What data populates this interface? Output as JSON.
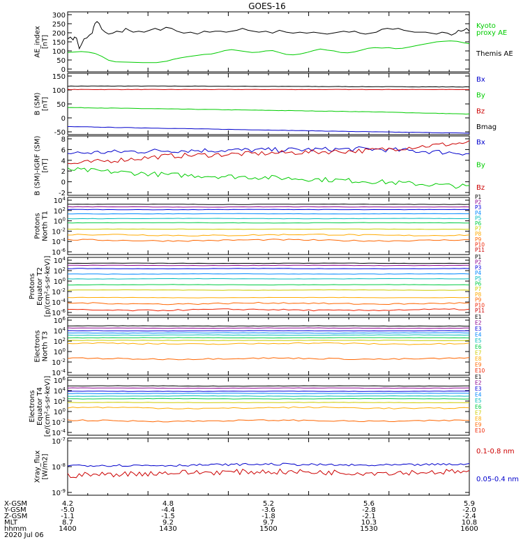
{
  "title": "GOES-16",
  "panels": [
    {
      "id": "ae",
      "ylabel": [
        "AE_index",
        "[nT]"
      ],
      "yticks": [
        "300",
        "250",
        "200",
        "150",
        "100",
        "50",
        "0"
      ],
      "ylim": [
        0,
        310
      ],
      "legend": [
        {
          "text": "Kyoto",
          "color": "#00cc00"
        },
        {
          "text": "proxy AE",
          "color": "#00cc00"
        },
        {
          "text": "Themis AE",
          "color": "#000000"
        }
      ]
    },
    {
      "id": "bsm",
      "ylabel": [
        "B (SM)",
        "[nT]"
      ],
      "yticks": [
        "150",
        "100",
        "50",
        "0",
        "-50"
      ],
      "ylim": [
        -60,
        155
      ],
      "legend": [
        {
          "text": "Bx",
          "color": "#0000cc"
        },
        {
          "text": "By",
          "color": "#00cc00"
        },
        {
          "text": "Bz",
          "color": "#cc0000"
        },
        {
          "text": "Bmag",
          "color": "#000000"
        }
      ]
    },
    {
      "id": "bigrf",
      "ylabel": [
        "B (SM)-IGRF (SM)",
        "[nT]"
      ],
      "yticks": [
        "8",
        "6",
        "4",
        "2",
        "0",
        "-2"
      ],
      "ylim": [
        -2.8,
        8.2
      ],
      "legend": [
        {
          "text": "Bx",
          "color": "#0000cc"
        },
        {
          "text": "By",
          "color": "#00cc00"
        },
        {
          "text": "Bz",
          "color": "#cc0000"
        }
      ]
    },
    {
      "id": "pnt1",
      "ylabel": [
        "Protons",
        "North T1"
      ],
      "yticks": [
        "10^4",
        "10^2",
        "10^0",
        "10^-2",
        "10^-4",
        "10^-6"
      ],
      "channels": [
        "P1",
        "P2",
        "P3",
        "P4",
        "P5",
        "P6",
        "P7",
        "P8",
        "P9",
        "P10",
        "P11"
      ]
    },
    {
      "id": "pet2",
      "ylabel": [
        "Protons",
        "Equator T2",
        "[p/(cm²-s-sr-keV)]"
      ],
      "yticks": [
        "10^4",
        "10^2",
        "10^0",
        "10^-2",
        "10^-4",
        "10^-6"
      ],
      "channels": [
        "P1",
        "P2",
        "P3",
        "P4",
        "P5",
        "P6",
        "P7",
        "P8",
        "P9",
        "P10",
        "P11"
      ]
    },
    {
      "id": "ent3",
      "ylabel": [
        "Electrons",
        "North T3"
      ],
      "yticks": [
        "10^6",
        "10^4",
        "10^2",
        "10^0",
        "10^-2",
        "10^-4"
      ],
      "channels": [
        "E1",
        "E2",
        "E3",
        "E4",
        "E5",
        "E6",
        "E7",
        "E8",
        "E9",
        "E10"
      ]
    },
    {
      "id": "eet4",
      "ylabel": [
        "Electrons",
        "Equator T4",
        "[e/(cm²-s-sr-keV)]"
      ],
      "yticks": [
        "10^6",
        "10^4",
        "10^2",
        "10^0",
        "10^-2",
        "10^-4"
      ],
      "channels": [
        "E1",
        "E2",
        "E3",
        "E4",
        "E5",
        "E6",
        "E7",
        "E8",
        "E9",
        "E10"
      ]
    },
    {
      "id": "xray",
      "ylabel": [
        "Xray_flux",
        "[W/m2]"
      ],
      "yticks": [
        "10^-7",
        "10^-8",
        "10^-9"
      ],
      "legend": [
        {
          "text": "0.1-0.8 nm",
          "color": "#cc0000"
        },
        {
          "text": "0.05-0.4 nm",
          "color": "#0000cc"
        }
      ]
    }
  ],
  "xaxis": {
    "row_labels": [
      "X-GSM",
      "Y-GSM",
      "Z-GSM",
      "MLT",
      "hhmm",
      "2020 Jul 06"
    ],
    "columns": [
      [
        "4.2",
        "-5.0",
        "-1.1",
        "8.7",
        "1400"
      ],
      [
        "4.8",
        "-4.4",
        "-1.5",
        "9.2",
        "1430"
      ],
      [
        "5.2",
        "-3.6",
        "-1.8",
        "9.7",
        "1500"
      ],
      [
        "5.6",
        "-2.8",
        "-2.1",
        "10.3",
        "1530"
      ],
      [
        "5.9",
        "-2.0",
        "-2.4",
        "10.8",
        "1600"
      ]
    ]
  },
  "chart_data": [
    {
      "type": "line",
      "title": "GOES-16",
      "ylabel": "AE_index [nT]",
      "x": [
        "1400",
        "1430",
        "1500",
        "1530",
        "1600"
      ],
      "ylim": [
        0,
        310
      ],
      "series": [
        {
          "name": "Themis AE",
          "color": "#000000",
          "values": [
            170,
            185,
            200,
            210,
            215
          ],
          "profile": [
            [
              0,
              170
            ],
            [
              4,
              180
            ],
            [
              8,
              165
            ],
            [
              10,
              180
            ],
            [
              13,
              175
            ],
            [
              17,
              120
            ],
            [
              20,
              140
            ],
            [
              24,
              170
            ],
            [
              28,
              175
            ],
            [
              32,
              190
            ],
            [
              36,
              200
            ],
            [
              38,
              230
            ],
            [
              40,
              250
            ],
            [
              43,
              260
            ],
            [
              46,
              250
            ],
            [
              50,
              220
            ],
            [
              55,
              205
            ],
            [
              60,
              195
            ],
            [
              66,
              200
            ],
            [
              72,
              210
            ],
            [
              80,
              205
            ],
            [
              85,
              225
            ],
            [
              90,
              215
            ],
            [
              96,
              205
            ],
            [
              104,
              210
            ],
            [
              112,
              205
            ],
            [
              120,
              215
            ],
            [
              128,
              225
            ],
            [
              136,
              215
            ],
            [
              144,
              230
            ],
            [
              152,
              225
            ],
            [
              160,
              210
            ],
            [
              170,
              200
            ],
            [
              180,
              205
            ],
            [
              190,
              195
            ],
            [
              200,
              210
            ],
            [
              208,
              205
            ],
            [
              216,
              210
            ],
            [
              224,
              210
            ],
            [
              232,
              205
            ],
            [
              240,
              210
            ],
            [
              248,
              215
            ],
            [
              256,
              225
            ],
            [
              264,
              215
            ],
            [
              272,
              210
            ],
            [
              280,
              205
            ],
            [
              290,
              210
            ],
            [
              300,
              200
            ],
            [
              310,
              215
            ],
            [
              320,
              205
            ],
            [
              330,
              200
            ],
            [
              340,
              205
            ],
            [
              350,
              200
            ],
            [
              360,
              205
            ],
            [
              370,
              200
            ],
            [
              380,
              195
            ],
            [
              388,
              200
            ],
            [
              396,
              205
            ],
            [
              404,
              210
            ],
            [
              412,
              205
            ],
            [
              420,
              210
            ],
            [
              428,
              200
            ],
            [
              436,
              195
            ],
            [
              444,
              200
            ],
            [
              452,
              205
            ],
            [
              460,
              220
            ],
            [
              468,
              225
            ],
            [
              476,
              220
            ],
            [
              484,
              225
            ],
            [
              492,
              215
            ],
            [
              500,
              210
            ],
            [
              508,
              205
            ],
            [
              516,
              205
            ],
            [
              524,
              205
            ],
            [
              532,
              200
            ],
            [
              540,
              195
            ],
            [
              548,
              205
            ],
            [
              556,
              200
            ],
            [
              562,
              190
            ],
            [
              568,
              200
            ],
            [
              572,
              215
            ],
            [
              576,
              210
            ],
            [
              580,
              215
            ],
            [
              584,
              225
            ],
            [
              588,
              210
            ]
          ]
        },
        {
          "name": "Kyoto proxy AE",
          "color": "#00cc00",
          "values": [
            100,
            65,
            100,
            110,
            155
          ],
          "profile": [
            [
              0,
              100
            ],
            [
              20,
              105
            ],
            [
              30,
              102
            ],
            [
              40,
              95
            ],
            [
              50,
              80
            ],
            [
              60,
              60
            ],
            [
              70,
              52
            ],
            [
              90,
              50
            ],
            [
              110,
              48
            ],
            [
              130,
              48
            ],
            [
              145,
              55
            ],
            [
              155,
              65
            ],
            [
              165,
              72
            ],
            [
              175,
              78
            ],
            [
              190,
              85
            ],
            [
              200,
              90
            ],
            [
              210,
              92
            ],
            [
              220,
              100
            ],
            [
              230,
              110
            ],
            [
              240,
              115
            ],
            [
              250,
              110
            ],
            [
              260,
              105
            ],
            [
              270,
              100
            ],
            [
              280,
              102
            ],
            [
              290,
              108
            ],
            [
              300,
              110
            ],
            [
              310,
              100
            ],
            [
              320,
              90
            ],
            [
              330,
              88
            ],
            [
              340,
              92
            ],
            [
              350,
              100
            ],
            [
              360,
              110
            ],
            [
              370,
              118
            ],
            [
              380,
              112
            ],
            [
              390,
              108
            ],
            [
              400,
              100
            ],
            [
              410,
              98
            ],
            [
              420,
              103
            ],
            [
              430,
              112
            ],
            [
              440,
              122
            ],
            [
              450,
              125
            ],
            [
              460,
              123
            ],
            [
              470,
              125
            ],
            [
              480,
              120
            ],
            [
              490,
              122
            ],
            [
              500,
              128
            ],
            [
              510,
              135
            ],
            [
              520,
              142
            ],
            [
              530,
              148
            ],
            [
              540,
              155
            ],
            [
              550,
              158
            ],
            [
              560,
              160
            ],
            [
              570,
              158
            ],
            [
              580,
              150
            ],
            [
              588,
              145
            ]
          ]
        }
      ]
    },
    {
      "type": "line",
      "ylabel": "B (SM) [nT]",
      "x": [
        "1400",
        "1430",
        "1500",
        "1530",
        "1600"
      ],
      "ylim": [
        -60,
        155
      ],
      "series": [
        {
          "name": "Bmag",
          "color": "#000000",
          "values": [
            110,
            110,
            109,
            108,
            107
          ]
        },
        {
          "name": "Bz",
          "color": "#cc0000",
          "values": [
            98,
            98,
            98,
            98,
            98
          ]
        },
        {
          "name": "By",
          "color": "#00cc00",
          "values": [
            35,
            30,
            25,
            20,
            12
          ]
        },
        {
          "name": "Bx",
          "color": "#0000cc",
          "values": [
            -32,
            -38,
            -44,
            -50,
            -55
          ]
        }
      ]
    },
    {
      "type": "line",
      "ylabel": "B (SM)-IGRF (SM) [nT]",
      "x": [
        "1400",
        "1430",
        "1500",
        "1530",
        "1600"
      ],
      "ylim": [
        -2.8,
        8.2
      ],
      "series": [
        {
          "name": "Bx",
          "color": "#0000cc",
          "values": [
            5.0,
            5.5,
            5.6,
            5.8,
            5.0
          ]
        },
        {
          "name": "Bz",
          "color": "#cc0000",
          "values": [
            3.0,
            4.5,
            5.0,
            5.5,
            7.0
          ]
        },
        {
          "name": "By",
          "color": "#00cc00",
          "values": [
            2.0,
            1.0,
            0.5,
            -0.2,
            -1.2
          ]
        }
      ]
    },
    {
      "type": "line",
      "ylabel": "Protons North T1",
      "x": [
        "1400",
        "1430",
        "1500",
        "1530",
        "1600"
      ],
      "series_levels_log10": {
        "P1": 3.0,
        "P2": 2.5,
        "P3": 2.0,
        "P4": 1.2,
        "P5": 0.3,
        "P6": -0.5,
        "P7": -1.7,
        "P8": -2.8,
        "P9": -3.8
      }
    },
    {
      "type": "line",
      "ylabel": "Protons Equator T2 [p/(cm²-s-sr-keV)]",
      "x": [
        "1400",
        "1430",
        "1500",
        "1530",
        "1600"
      ],
      "series_levels_log10": {
        "P1": 3.2,
        "P2": 2.8,
        "P3": 2.2,
        "P4": 1.2,
        "P5": 0.3,
        "P6": -0.8,
        "P7": -1.8,
        "P8": -3.2,
        "P9": -4.3,
        "P10": -5.5
      }
    },
    {
      "type": "line",
      "ylabel": "Electrons North T3",
      "x": [
        "1400",
        "1430",
        "1500",
        "1530",
        "1600"
      ],
      "series_levels_log10": {
        "E1": 4.7,
        "E2": 4.3,
        "E3": 3.8,
        "E4": 3.4,
        "E5": 3.0,
        "E6": 2.5,
        "E7": 2.0,
        "E8": 1.4,
        "E9": -1.4
      }
    },
    {
      "type": "line",
      "ylabel": "Electrons Equator T4 [e/(cm²-s-sr-keV)]",
      "x": [
        "1400",
        "1430",
        "1500",
        "1530",
        "1600"
      ],
      "series_levels_log10": {
        "E1": 4.7,
        "E2": 4.3,
        "E3": 3.7,
        "E4": 3.3,
        "E5": 2.8,
        "E6": 2.3,
        "E7": 1.6,
        "E8": 0.6,
        "E9": -1.8
      }
    },
    {
      "type": "line",
      "ylabel": "Xray_flux [W/m2]",
      "x": [
        "1400",
        "1430",
        "1500",
        "1530",
        "1600"
      ],
      "yscale": "log",
      "series": [
        {
          "name": "0.05-0.4 nm",
          "color": "#0000cc",
          "values_log10": [
            -8.0,
            -8.0,
            -7.95,
            -8.0,
            -7.95
          ]
        },
        {
          "name": "0.1-0.8 nm",
          "color": "#cc0000",
          "values_log10": [
            -8.4,
            -8.3,
            -8.25,
            -8.3,
            -8.25
          ]
        }
      ]
    }
  ]
}
